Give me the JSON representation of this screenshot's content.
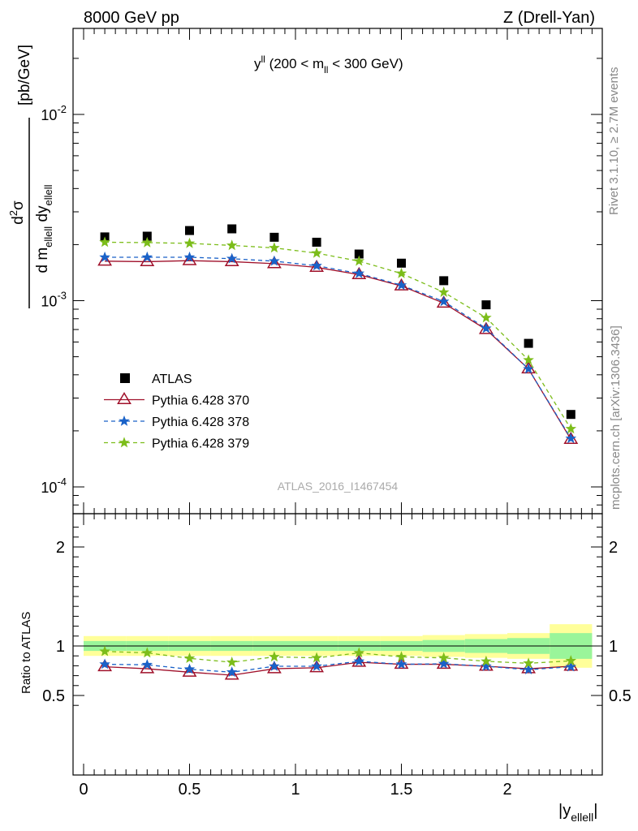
{
  "header": {
    "left": "8000 GeV pp",
    "right": "Z (Drell-Yan)"
  },
  "side": {
    "rivet": "Rivet 3.1.10, ≥ 2.7M events",
    "mcplots": "mcplots.cern.ch [arXiv:1306.3436]"
  },
  "analysis_id": "ATLAS_2016_I1467454",
  "chart_data": [
    {
      "type": "scatter",
      "title": "y^ll (200 < m_ll < 300 GeV)",
      "ylabel": "d²σ / d m_ellell dy_ellell [pb/GeV]",
      "xlabel": "|y_ellell|",
      "yscale": "log",
      "ylim": [
        8e-05,
        0.03
      ],
      "xlim": [
        -0.05,
        2.45
      ],
      "ytick_labels": [
        "10^{-4}",
        "10^{-3}",
        "10^{-2}"
      ],
      "xtick_labels": [
        "0",
        "0.5",
        "1",
        "1.5",
        "2"
      ],
      "legend_position": "lower-left",
      "x": [
        0.1,
        0.3,
        0.5,
        0.7,
        0.9,
        1.1,
        1.3,
        1.5,
        1.7,
        1.9,
        2.1,
        2.3
      ],
      "series": [
        {
          "name": "ATLAS",
          "color": "#000000",
          "marker": "square",
          "values": [
            0.0022,
            0.00222,
            0.00238,
            0.00243,
            0.00219,
            0.00206,
            0.00178,
            0.00159,
            0.00128,
            0.00095,
            0.00059,
            0.000245
          ]
        },
        {
          "name": "Pythia 6.428 370",
          "color": "#a0102a",
          "marker": "triangle-open",
          "line": "solid",
          "values": [
            0.00163,
            0.00162,
            0.00164,
            0.00162,
            0.00158,
            0.00151,
            0.00138,
            0.0012,
            0.00097,
            0.0007,
            0.00043,
            0.00018
          ]
        },
        {
          "name": "Pythia 6.428 378",
          "color": "#1a62c8",
          "marker": "star",
          "line": "dashed",
          "values": [
            0.00171,
            0.00171,
            0.00171,
            0.00168,
            0.00163,
            0.00154,
            0.0014,
            0.00121,
            0.00099,
            0.00071,
            0.00043,
            0.000182
          ]
        },
        {
          "name": "Pythia 6.428 379",
          "color": "#7cbd1a",
          "marker": "star",
          "line": "dashed",
          "values": [
            0.00206,
            0.00205,
            0.00203,
            0.00198,
            0.00192,
            0.0018,
            0.00163,
            0.0014,
            0.00111,
            0.00081,
            0.00048,
            0.000205
          ]
        }
      ]
    },
    {
      "type": "line",
      "ylabel": "Ratio to ATLAS",
      "xlabel": "|y_ellell|",
      "ylim": [
        0.35,
        2.3
      ],
      "xlim": [
        -0.05,
        2.45
      ],
      "ytick_labels": [
        "0.5",
        "1",
        "2"
      ],
      "xtick_labels": [
        "0",
        "0.5",
        "1",
        "1.5",
        "2"
      ],
      "x": [
        0.1,
        0.3,
        0.5,
        0.7,
        0.9,
        1.1,
        1.3,
        1.5,
        1.7,
        1.9,
        2.1,
        2.3
      ],
      "uncertainty_bands": {
        "bin_edges": [
          0.0,
          0.2,
          0.4,
          0.6,
          0.8,
          1.0,
          1.2,
          1.4,
          1.6,
          1.8,
          2.0,
          2.2,
          2.4
        ],
        "inner": [
          0.05,
          0.05,
          0.05,
          0.05,
          0.05,
          0.05,
          0.05,
          0.05,
          0.06,
          0.07,
          0.08,
          0.13
        ],
        "outer": [
          0.1,
          0.1,
          0.1,
          0.1,
          0.1,
          0.1,
          0.1,
          0.1,
          0.11,
          0.12,
          0.13,
          0.22
        ]
      },
      "series": [
        {
          "name": "Pythia 6.428 370",
          "color": "#a0102a",
          "values": [
            0.79,
            0.77,
            0.735,
            0.705,
            0.77,
            0.78,
            0.835,
            0.815,
            0.815,
            0.795,
            0.77,
            0.795
          ]
        },
        {
          "name": "Pythia 6.428 378",
          "color": "#1a62c8",
          "values": [
            0.815,
            0.81,
            0.765,
            0.735,
            0.795,
            0.795,
            0.845,
            0.815,
            0.82,
            0.795,
            0.76,
            0.79
          ]
        },
        {
          "name": "Pythia 6.428 379",
          "color": "#7cbd1a",
          "values": [
            0.945,
            0.93,
            0.875,
            0.835,
            0.89,
            0.88,
            0.93,
            0.89,
            0.88,
            0.845,
            0.825,
            0.85
          ]
        }
      ]
    }
  ]
}
